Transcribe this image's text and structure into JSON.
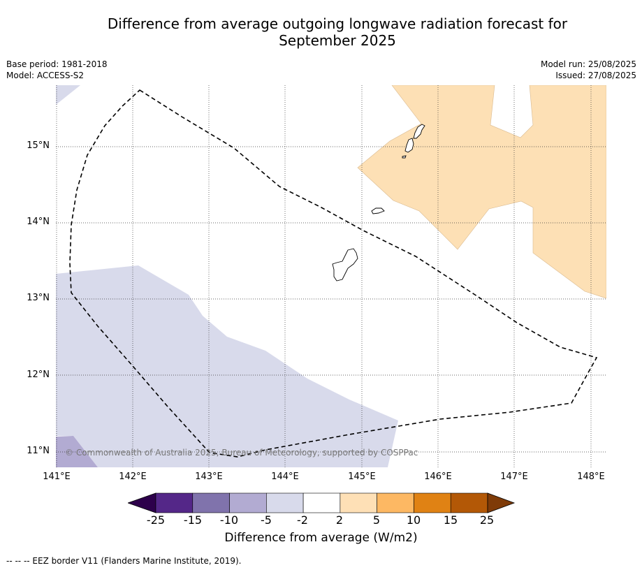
{
  "title_line1": "Difference from average outgoing longwave radiation forecast for",
  "title_line2": "September 2025",
  "meta": {
    "base_period": "Base period: 1981-2018",
    "model": "Model: ACCESS-S2",
    "model_run": "Model run: 25/08/2025",
    "issued": "Issued: 27/08/2025"
  },
  "map": {
    "copyright": "© Commonwealth of Australia 2025, Bureau of Meteorology, supported by COSPPac",
    "lat_labels": [
      "15°N",
      "14°N",
      "13°N",
      "12°N",
      "11°N"
    ],
    "lon_labels": [
      "141°E",
      "142°E",
      "143°E",
      "144°E",
      "145°E",
      "146°E",
      "147°E",
      "148°E"
    ]
  },
  "colorbar": {
    "label": "Difference from average (W/m2)",
    "ticks": [
      "-25",
      "-15",
      "-10",
      "-5",
      "-2",
      "2",
      "5",
      "10",
      "15",
      "25"
    ],
    "colors": [
      "#2d004b",
      "#542788",
      "#8073ac",
      "#b2abd2",
      "#d8daeb",
      "#ffffff",
      "#fee0b6",
      "#fdb863",
      "#e08214",
      "#b35806",
      "#7f3b08"
    ]
  },
  "footnote": "--  --  -- EEZ border V11 (Flanders Marine Institute, 2019)."
}
